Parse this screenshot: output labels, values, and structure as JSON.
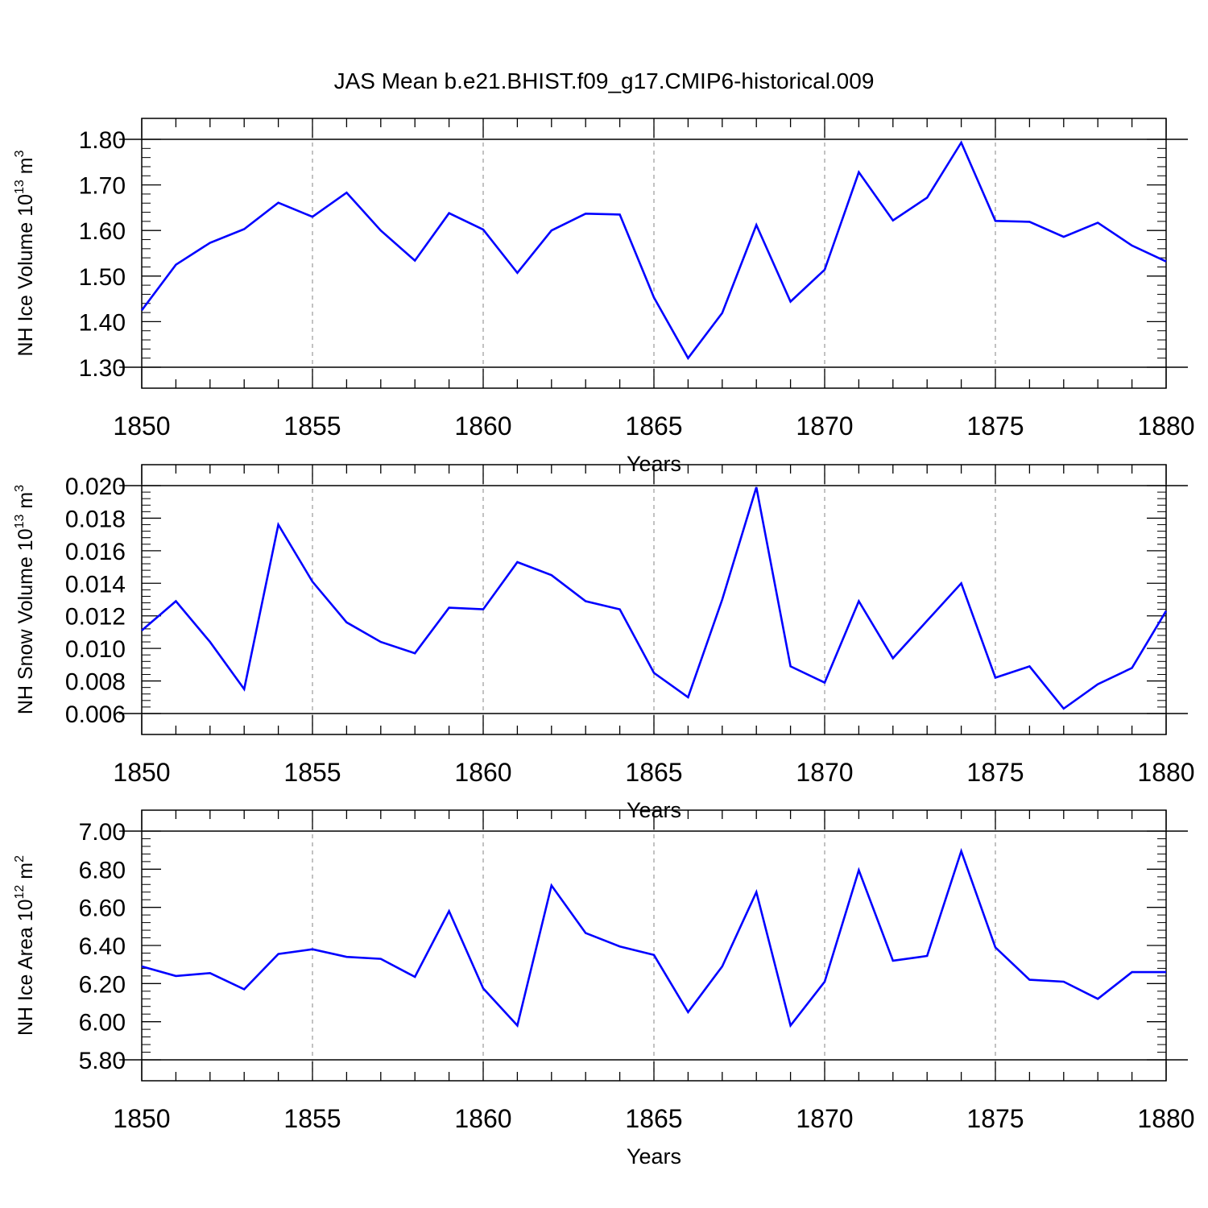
{
  "chart_data": {
    "title": "JAS Mean b.e21.BHIST.f09_g17.CMIP6-historical.009",
    "panels": [
      {
        "type": "line",
        "ylabel": {
          "text": "NH Ice Volume 10",
          "exponent": "13",
          "unit": "m",
          "unit_exponent": "3"
        },
        "xlabel": "Years",
        "xlim": [
          1850,
          1880
        ],
        "ylim": [
          1.3,
          1.8
        ],
        "x_ticks": [
          "1850",
          "1855",
          "1860",
          "1865",
          "1870",
          "1875",
          "1880"
        ],
        "y_ticks": [
          "1.30",
          "1.40",
          "1.50",
          "1.60",
          "1.70",
          "1.80"
        ],
        "grid": "vertical dashed at major x ticks",
        "series": [
          {
            "color": "#0000ff",
            "x": [
              1850,
              1851,
              1852,
              1853,
              1854,
              1855,
              1856,
              1857,
              1858,
              1859,
              1860,
              1861,
              1862,
              1863,
              1864,
              1865,
              1866,
              1867,
              1868,
              1869,
              1870,
              1871,
              1872,
              1873,
              1874,
              1875,
              1876,
              1877,
              1878,
              1879,
              1880
            ],
            "values": [
              1.425,
              1.525,
              1.573,
              1.603,
              1.661,
              1.63,
              1.683,
              1.6,
              1.534,
              1.638,
              1.602,
              1.507,
              1.6,
              1.637,
              1.635,
              1.453,
              1.32,
              1.419,
              1.612,
              1.444,
              1.514,
              1.728,
              1.622,
              1.672,
              1.793,
              1.621,
              1.619,
              1.586,
              1.617,
              1.567,
              1.532
            ]
          }
        ]
      },
      {
        "type": "line",
        "ylabel": {
          "text": "NH Snow Volume 10",
          "exponent": "13",
          "unit": "m",
          "unit_exponent": "3"
        },
        "xlabel": "Years",
        "xlim": [
          1850,
          1880
        ],
        "ylim": [
          0.006,
          0.02
        ],
        "x_ticks": [
          "1850",
          "1855",
          "1860",
          "1865",
          "1870",
          "1875",
          "1880"
        ],
        "y_ticks": [
          "0.006",
          "0.008",
          "0.010",
          "0.012",
          "0.014",
          "0.016",
          "0.018",
          "0.020"
        ],
        "grid": "vertical dashed at major x ticks",
        "series": [
          {
            "color": "#0000ff",
            "x": [
              1850,
              1851,
              1852,
              1853,
              1854,
              1855,
              1856,
              1857,
              1858,
              1859,
              1860,
              1861,
              1862,
              1863,
              1864,
              1865,
              1866,
              1867,
              1868,
              1869,
              1870,
              1871,
              1872,
              1873,
              1874,
              1875,
              1876,
              1877,
              1878,
              1879,
              1880
            ],
            "values": [
              0.0111,
              0.0129,
              0.0104,
              0.0075,
              0.0176,
              0.0141,
              0.0116,
              0.0104,
              0.0097,
              0.0125,
              0.0124,
              0.0153,
              0.0145,
              0.0129,
              0.0124,
              0.0085,
              0.007,
              0.013,
              0.0199,
              0.0089,
              0.0079,
              0.0129,
              0.0094,
              0.0117,
              0.014,
              0.0082,
              0.0089,
              0.0063,
              0.0078,
              0.0088,
              0.0123
            ]
          }
        ]
      },
      {
        "type": "line",
        "ylabel": {
          "text": "NH Ice Area 10",
          "exponent": "12",
          "unit": "m",
          "unit_exponent": "2"
        },
        "xlabel": "Years",
        "xlim": [
          1850,
          1880
        ],
        "ylim": [
          5.8,
          7.0
        ],
        "x_ticks": [
          "1850",
          "1855",
          "1860",
          "1865",
          "1870",
          "1875",
          "1880"
        ],
        "y_ticks": [
          "5.80",
          "6.00",
          "6.20",
          "6.40",
          "6.60",
          "6.80",
          "7.00"
        ],
        "grid": "vertical dashed at major x ticks",
        "series": [
          {
            "color": "#0000ff",
            "x": [
              1850,
              1851,
              1852,
              1853,
              1854,
              1855,
              1856,
              1857,
              1858,
              1859,
              1860,
              1861,
              1862,
              1863,
              1864,
              1865,
              1866,
              1867,
              1868,
              1869,
              1870,
              1871,
              1872,
              1873,
              1874,
              1875,
              1876,
              1877,
              1878,
              1879,
              1880
            ],
            "values": [
              6.29,
              6.24,
              6.255,
              6.17,
              6.355,
              6.38,
              6.34,
              6.33,
              6.235,
              6.58,
              6.175,
              5.98,
              6.715,
              6.465,
              6.395,
              6.35,
              6.05,
              6.29,
              6.68,
              5.98,
              6.21,
              6.795,
              6.32,
              6.345,
              6.895,
              6.39,
              6.22,
              6.21,
              6.12,
              6.26,
              6.26
            ]
          }
        ]
      }
    ]
  }
}
